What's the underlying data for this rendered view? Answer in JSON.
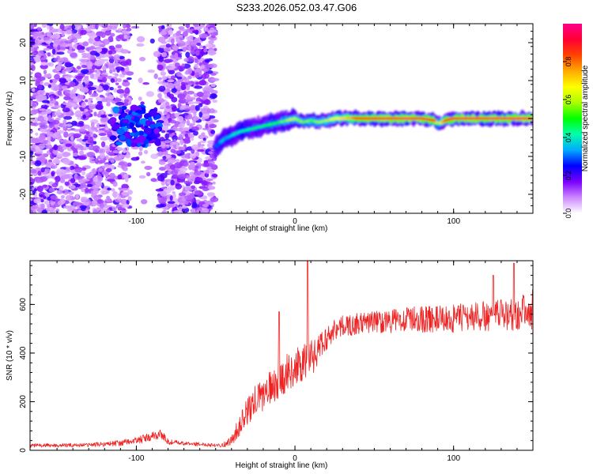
{
  "title": "S233.2026.052.03.47.G06",
  "chart_data": [
    {
      "type": "heatmap",
      "name": "spectrogram",
      "xlabel": "Height of straight line (km)",
      "ylabel": "Frequency (Hz)",
      "xlim": [
        -167,
        150
      ],
      "ylim": [
        -25,
        25
      ],
      "xticks": [
        -100,
        0,
        100
      ],
      "yticks": [
        -20,
        -10,
        0,
        10,
        20
      ],
      "colorbar": {
        "label": "Normalized spectral amplitude",
        "range": [
          0,
          1
        ],
        "ticks": [
          "0.0",
          "0.2",
          "0.4",
          "0.6",
          "0.8"
        ],
        "tick_values": [
          0.0,
          0.2,
          0.4,
          0.6,
          0.8
        ],
        "colors": [
          "#ffffff",
          "#cc88ff",
          "#7a00ff",
          "#0000ff",
          "#00aaff",
          "#00ffaa",
          "#00ff00",
          "#aaff00",
          "#ffff00",
          "#ffaa00",
          "#ff4400",
          "#ff0033",
          "#ff0088"
        ]
      },
      "noise_region_x": [
        -167,
        -50
      ],
      "blank_gap_x": [
        -107,
        -83
      ],
      "signal_start_x": -50,
      "signal_track": {
        "x": [
          -50,
          -45,
          -40,
          -35,
          -30,
          -25,
          -20,
          -15,
          -10,
          -5,
          0,
          5,
          10,
          15,
          20,
          25,
          30,
          35,
          40,
          50,
          60,
          70,
          80,
          88,
          90,
          95,
          100,
          110,
          120,
          130,
          140,
          150
        ],
        "y": [
          -7.5,
          -5.5,
          -4.5,
          -3.5,
          -3,
          -2.5,
          -2,
          -1.5,
          -1,
          -0.5,
          0,
          -1,
          -0.5,
          -1,
          -0.5,
          0,
          0,
          0.2,
          0,
          0,
          0,
          0,
          0,
          -0.5,
          -1.5,
          -0.5,
          0,
          0,
          0,
          0,
          0,
          0
        ],
        "amplitude": [
          0.3,
          0.35,
          0.38,
          0.4,
          0.42,
          0.45,
          0.45,
          0.5,
          0.5,
          0.55,
          0.6,
          0.55,
          0.55,
          0.55,
          0.6,
          0.65,
          0.7,
          0.75,
          0.9,
          0.92,
          0.93,
          0.94,
          0.93,
          0.9,
          0.5,
          0.85,
          0.93,
          0.94,
          0.93,
          0.94,
          0.95,
          0.95
        ]
      },
      "low_altitude_cluster": {
        "x": [
          -115,
          -85
        ],
        "y": [
          -7,
          3
        ],
        "amplitude": 0.28
      }
    },
    {
      "type": "line",
      "name": "snr",
      "xlabel": "Height of straight line (km)",
      "ylabel": "SNR (10 * v/v)",
      "xlim": [
        -167,
        150
      ],
      "ylim": [
        0,
        780
      ],
      "xticks": [
        -100,
        0,
        100
      ],
      "yticks": [
        0,
        200,
        400,
        600
      ],
      "color": "#ee2222",
      "series": [
        {
          "name": "SNR",
          "x": [
            -167,
            -150,
            -130,
            -110,
            -100,
            -90,
            -85,
            -80,
            -70,
            -60,
            -50,
            -45,
            -40,
            -35,
            -30,
            -25,
            -20,
            -15,
            -10,
            -5,
            0,
            5,
            8,
            10,
            12,
            15,
            20,
            25,
            30,
            40,
            50,
            60,
            70,
            80,
            90,
            100,
            110,
            120,
            130,
            140,
            145,
            150
          ],
          "y": [
            20,
            20,
            22,
            30,
            40,
            55,
            70,
            35,
            28,
            25,
            22,
            22,
            40,
            100,
            160,
            200,
            230,
            260,
            290,
            320,
            340,
            350,
            370,
            420,
            380,
            420,
            460,
            500,
            510,
            520,
            530,
            530,
            540,
            540,
            540,
            540,
            550,
            550,
            560,
            560,
            580,
            540
          ],
          "noise": [
            8,
            8,
            8,
            12,
            15,
            20,
            25,
            12,
            8,
            8,
            8,
            10,
            20,
            45,
            55,
            70,
            70,
            70,
            80,
            80,
            80,
            80,
            85,
            80,
            80,
            60,
            50,
            45,
            45,
            45,
            45,
            50,
            50,
            55,
            55,
            60,
            60,
            65,
            65,
            70,
            70,
            60
          ]
        }
      ],
      "peaks": [
        {
          "x": 8,
          "y": 780
        },
        {
          "x": -10,
          "y": 570
        },
        {
          "x": 138,
          "y": 770
        },
        {
          "x": 125,
          "y": 720
        },
        {
          "x": 150,
          "y": 660
        }
      ]
    }
  ]
}
